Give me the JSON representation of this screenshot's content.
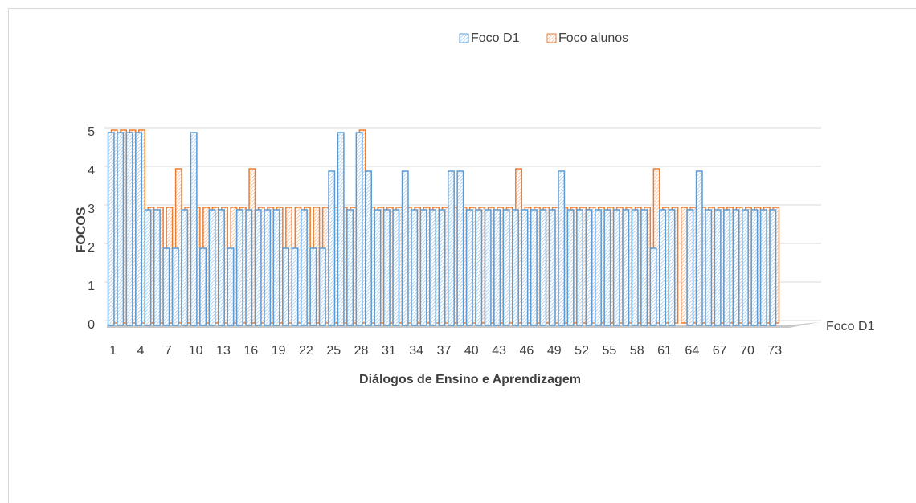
{
  "chart_data": {
    "type": "bar3d",
    "x_label": "Diálogos de Ensino e Aprendizagem",
    "y_label": "FOCOS",
    "categories": [
      "1",
      null,
      null,
      "4",
      null,
      null,
      "7",
      null,
      null,
      "10",
      null,
      null,
      "13",
      null,
      null,
      "16",
      null,
      null,
      "19",
      null,
      null,
      "22",
      null,
      null,
      "25",
      null,
      null,
      "28",
      null,
      null,
      "31",
      null,
      null,
      "34",
      null,
      null,
      "37",
      null,
      null,
      "40",
      null,
      null,
      "43",
      null,
      null,
      "46",
      null,
      null,
      "49",
      null,
      null,
      "52",
      null,
      null,
      "55",
      null,
      null,
      "58",
      null,
      null,
      "61",
      null,
      null,
      "64",
      null,
      null,
      "67",
      null,
      null,
      "70",
      null,
      null,
      "73"
    ],
    "series": [
      {
        "name": "Foco D1",
        "color": "#5b9bd5",
        "values": [
          5,
          5,
          5,
          5,
          3,
          3,
          2,
          2,
          3,
          5,
          2,
          3,
          3,
          2,
          3,
          3,
          3,
          3,
          3,
          2,
          2,
          3,
          2,
          2,
          4,
          5,
          3,
          5,
          4,
          3,
          3,
          3,
          4,
          3,
          3,
          3,
          3,
          4,
          4,
          3,
          3,
          3,
          3,
          3,
          3,
          3,
          3,
          3,
          3,
          4,
          3,
          3,
          3,
          3,
          3,
          3,
          3,
          3,
          3,
          2,
          3,
          3,
          0,
          3,
          4,
          3,
          3,
          3,
          3,
          3,
          3,
          3,
          3
        ]
      },
      {
        "name": "Foco alunos",
        "color": "#ed7d31",
        "values": [
          5,
          5,
          5,
          5,
          3,
          3,
          3,
          4,
          3,
          3,
          3,
          3,
          3,
          3,
          3,
          4,
          3,
          3,
          3,
          3,
          3,
          3,
          3,
          3,
          3,
          3,
          3,
          5,
          3,
          3,
          3,
          3,
          3,
          3,
          3,
          3,
          3,
          3,
          3,
          3,
          3,
          3,
          3,
          3,
          4,
          3,
          3,
          3,
          3,
          3,
          3,
          3,
          3,
          3,
          3,
          3,
          3,
          3,
          3,
          4,
          3,
          3,
          3,
          3,
          3,
          3,
          3,
          3,
          3,
          3,
          3,
          3,
          3
        ]
      }
    ],
    "ylim": [
      0,
      5
    ],
    "yticks": [
      0,
      1,
      2,
      3,
      4,
      5
    ],
    "grid": true,
    "legend": "top"
  }
}
